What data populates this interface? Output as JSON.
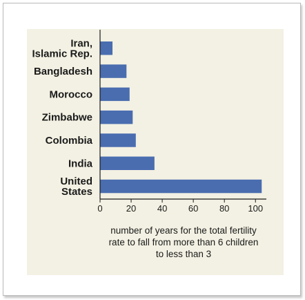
{
  "chart_data": {
    "type": "bar",
    "orientation": "horizontal",
    "title": "",
    "categories": [
      "Iran, Islamic Rep.",
      "Bangladesh",
      "Morocco",
      "Zimbabwe",
      "Colombia",
      "India",
      "United States"
    ],
    "category_lines": [
      [
        "Iran,",
        "Islamic Rep."
      ],
      [
        "Bangladesh"
      ],
      [
        "Morocco"
      ],
      [
        "Zimbabwe"
      ],
      [
        "Colombia"
      ],
      [
        "India"
      ],
      [
        "United",
        "States"
      ]
    ],
    "values": [
      8,
      17,
      19,
      21,
      23,
      35,
      104
    ],
    "xlabel": "number of years for the total fertility rate to fall from more than 6 children to less than 3",
    "xlabel_lines": [
      "number of years for the total fertility",
      "rate to fall from more than 6 children",
      "to less than 3"
    ],
    "ylabel": "",
    "xlim": [
      0,
      107
    ],
    "xticks": [
      0,
      20,
      40,
      60,
      80,
      100
    ],
    "grid": false,
    "colors": {
      "bar": "#4a6db0",
      "panel": "#f3f1e3",
      "axis": "#1a1a1a"
    }
  }
}
